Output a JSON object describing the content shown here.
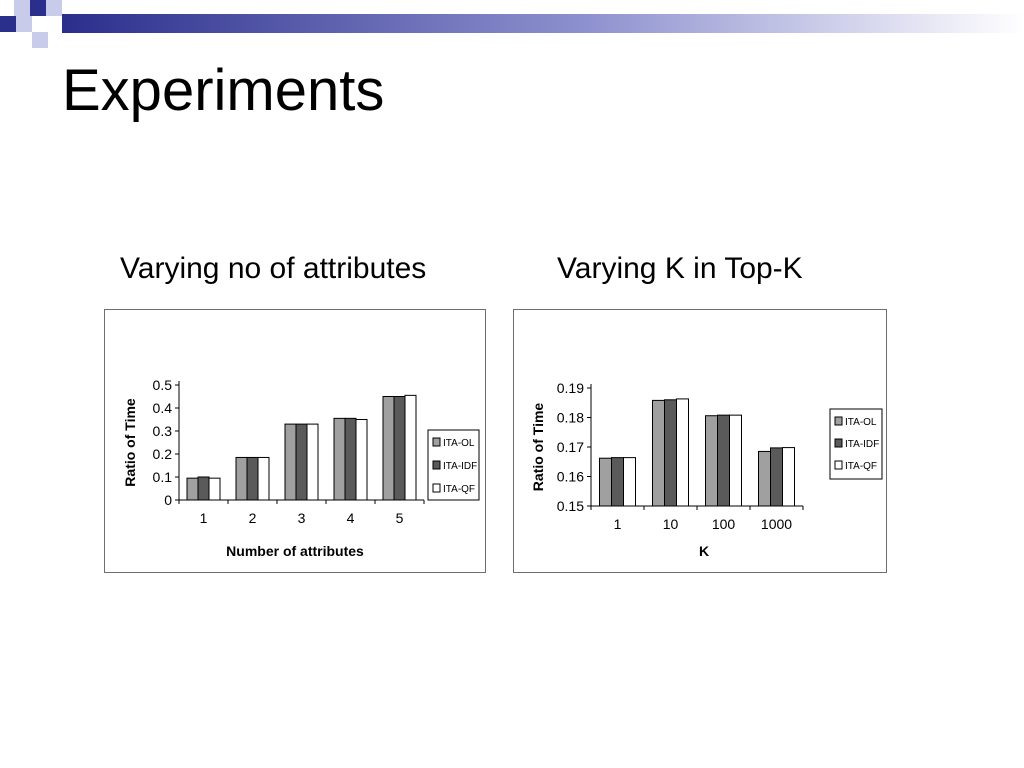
{
  "slide": {
    "title": "Experiments",
    "subtitle_left": "Varying no of attributes",
    "subtitle_right": "Varying K in Top-K"
  },
  "colors": {
    "deco_navy": "#2b2f8c",
    "deco_light": "#c9cbea",
    "series": [
      "#a0a0a0",
      "#5a5a5a",
      "#ffffff"
    ]
  },
  "chart_data": [
    {
      "type": "bar",
      "title": "",
      "xlabel": "Number of attributes",
      "ylabel": "Ratio of Time",
      "categories": [
        "1",
        "2",
        "3",
        "4",
        "5"
      ],
      "series": [
        {
          "name": "ITA-OL",
          "values": [
            0.095,
            0.185,
            0.33,
            0.355,
            0.45
          ]
        },
        {
          "name": "ITA-IDF",
          "values": [
            0.1,
            0.185,
            0.33,
            0.355,
            0.45
          ]
        },
        {
          "name": "ITA-QF",
          "values": [
            0.095,
            0.185,
            0.33,
            0.35,
            0.455
          ]
        }
      ],
      "ylim": [
        0,
        0.5
      ],
      "yticks": [
        "0",
        "0.1",
        "0.2",
        "0.3",
        "0.4",
        "0.5"
      ],
      "grid": false,
      "legend_position": "right"
    },
    {
      "type": "bar",
      "title": "",
      "xlabel": "K",
      "ylabel": "Ratio of Time",
      "categories": [
        "1",
        "10",
        "100",
        "1000"
      ],
      "series": [
        {
          "name": "ITA-OL",
          "values": [
            0.1662,
            0.1858,
            0.1806,
            0.1685
          ]
        },
        {
          "name": "ITA-IDF",
          "values": [
            0.1664,
            0.186,
            0.1808,
            0.1697
          ]
        },
        {
          "name": "ITA-QF",
          "values": [
            0.1664,
            0.1863,
            0.1808,
            0.1698
          ]
        }
      ],
      "ylim": [
        0.15,
        0.19
      ],
      "yticks": [
        "0.15",
        "0.16",
        "0.17",
        "0.18",
        "0.19"
      ],
      "grid": false,
      "legend_position": "right"
    }
  ]
}
